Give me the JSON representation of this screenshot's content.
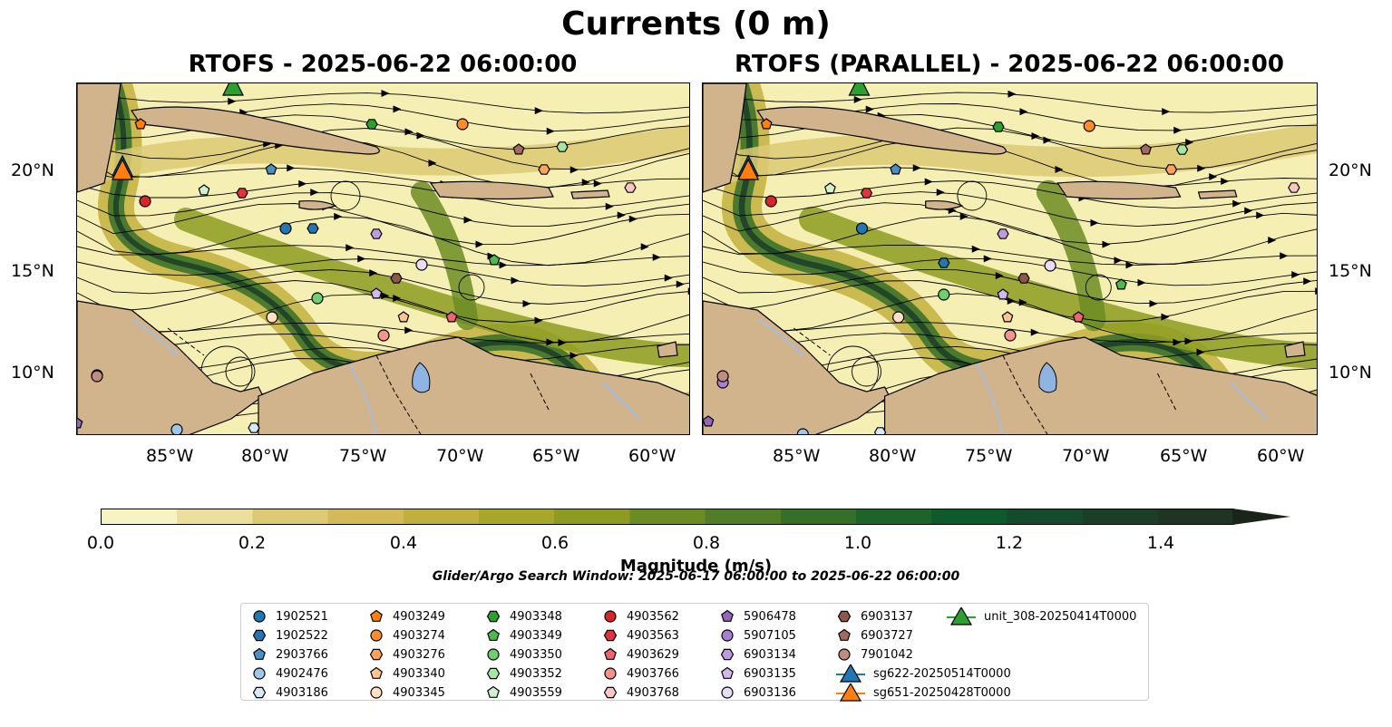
{
  "suptitle": "Currents (0 m)",
  "panels": [
    {
      "title": "RTOFS - 2025-06-22 06:00:00"
    },
    {
      "title": "RTOFS (PARALLEL) - 2025-06-22 06:00:00"
    }
  ],
  "lon_ticks": [
    "85°W",
    "80°W",
    "75°W",
    "70°W",
    "65°W",
    "60°W"
  ],
  "lat_ticks": [
    "20°N",
    "15°N",
    "10°N"
  ],
  "colorbar": {
    "label": "Magnitude (m/s)",
    "ticks": [
      "0.0",
      "0.2",
      "0.4",
      "0.6",
      "0.8",
      "1.0",
      "1.2",
      "1.4"
    ],
    "colors": [
      "#f8f3c2",
      "#ecdf9c",
      "#dcca74",
      "#d4ba56",
      "#c2b03e",
      "#a9a72a",
      "#8d9c20",
      "#6b8c22",
      "#4f7e26",
      "#356f28",
      "#1d6428",
      "#0d5a2a",
      "#154a2c",
      "#1b3e27",
      "#1f3424",
      "#1b2a1d"
    ]
  },
  "search_window": "Glider/Argo Search Window: 2025-06-17 06:00:00 to 2025-06-22 06:00:00",
  "legend": [
    {
      "label": "1902521",
      "marker": "circle",
      "color": "#1f77b4"
    },
    {
      "label": "1902522",
      "marker": "hexagon",
      "color": "#1f77b4"
    },
    {
      "label": "2903766",
      "marker": "pentagon",
      "color": "#4a90c8"
    },
    {
      "label": "4902476",
      "marker": "circle",
      "color": "#9fc8e8"
    },
    {
      "label": "4903186",
      "marker": "hexagon",
      "color": "#d6e9f7"
    },
    {
      "label": "4903249",
      "marker": "pentagon",
      "color": "#ff7f0e"
    },
    {
      "label": "4903274",
      "marker": "circle",
      "color": "#ff8c2a"
    },
    {
      "label": "4903276",
      "marker": "hexagon",
      "color": "#ffa25c"
    },
    {
      "label": "4903340",
      "marker": "pentagon",
      "color": "#ffc58f"
    },
    {
      "label": "4903345",
      "marker": "circle",
      "color": "#ffe0c2"
    },
    {
      "label": "4903348",
      "marker": "hexagon",
      "color": "#2ca02c"
    },
    {
      "label": "4903349",
      "marker": "pentagon",
      "color": "#4cbb4c"
    },
    {
      "label": "4903350",
      "marker": "circle",
      "color": "#6fcf6f"
    },
    {
      "label": "4903352",
      "marker": "hexagon",
      "color": "#a5e5a5"
    },
    {
      "label": "4903559",
      "marker": "pentagon",
      "color": "#cdf3cd"
    },
    {
      "label": "4903562",
      "marker": "circle",
      "color": "#d62728"
    },
    {
      "label": "4903563",
      "marker": "hexagon",
      "color": "#e0333d"
    },
    {
      "label": "4903629",
      "marker": "pentagon",
      "color": "#f0646e"
    },
    {
      "label": "4903766",
      "marker": "circle",
      "color": "#f4948f"
    },
    {
      "label": "4903768",
      "marker": "hexagon",
      "color": "#f9c6c4"
    },
    {
      "label": "5906478",
      "marker": "pentagon",
      "color": "#9467bd"
    },
    {
      "label": "5907105",
      "marker": "circle",
      "color": "#a97fd0"
    },
    {
      "label": "6903134",
      "marker": "hexagon",
      "color": "#be9be0"
    },
    {
      "label": "6903135",
      "marker": "pentagon",
      "color": "#d4b8ee"
    },
    {
      "label": "6903136",
      "marker": "circle",
      "color": "#e9dcf7"
    },
    {
      "label": "6903137",
      "marker": "hexagon",
      "color": "#8c564b"
    },
    {
      "label": "6903727",
      "marker": "pentagon",
      "color": "#a26b5e"
    },
    {
      "label": "7901042",
      "marker": "circle",
      "color": "#c08c80"
    },
    {
      "label": "sg622-20250514T0000",
      "marker": "triangle",
      "color": "#1f77b4"
    },
    {
      "label": "sg651-20250428T0000",
      "marker": "triangle",
      "color": "#ff7f0e"
    },
    {
      "label": "unit_308-20250414T0000",
      "marker": "triangle",
      "color": "#2ca02c"
    }
  ],
  "map_colors": {
    "land": "#d2b48c",
    "lake": "#8fb4e3",
    "river": "#a6bddb",
    "ocean_slow": "#f6efb4"
  }
}
